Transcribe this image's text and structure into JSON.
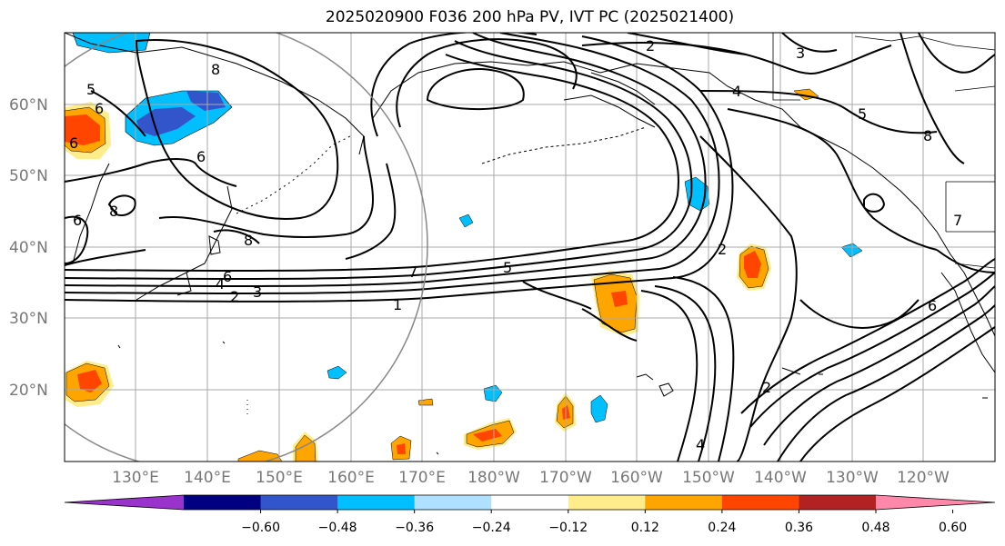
{
  "title": "2025020900 F036 200 hPa PV, IVT PC (2025021400)",
  "map": {
    "lat_labels": [
      "60°N",
      "50°N",
      "40°N",
      "30°N",
      "20°N"
    ],
    "lon_labels": [
      "130°E",
      "140°E",
      "150°E",
      "160°E",
      "170°E",
      "180°W",
      "170°W",
      "160°W",
      "150°W",
      "140°W",
      "130°W",
      "120°W"
    ],
    "contour_labels": [
      "2",
      "3",
      "8",
      "4",
      "5",
      "5",
      "6",
      "6",
      "6",
      "8",
      "6",
      "8",
      "8",
      "6",
      "4",
      "2",
      "3",
      "1",
      "7",
      "5",
      "2",
      "7",
      "6",
      "2",
      "4"
    ],
    "colors": {
      "contour": "#000000",
      "grid": "#aaaaaa",
      "coast": "#000000",
      "circle": "#888888"
    }
  },
  "colorbar": {
    "colors": [
      "#9933cc",
      "#000080",
      "#3355cc",
      "#00bfff",
      "#b0e0ff",
      "#ffffff",
      "#ffec8b",
      "#ffa500",
      "#ff4500",
      "#b22222",
      "#ff88aa"
    ],
    "tick_labels": [
      "−0.60",
      "−0.48",
      "−0.36",
      "−0.24",
      "−0.12",
      "0.12",
      "0.24",
      "0.36",
      "0.48",
      "0.60"
    ]
  }
}
